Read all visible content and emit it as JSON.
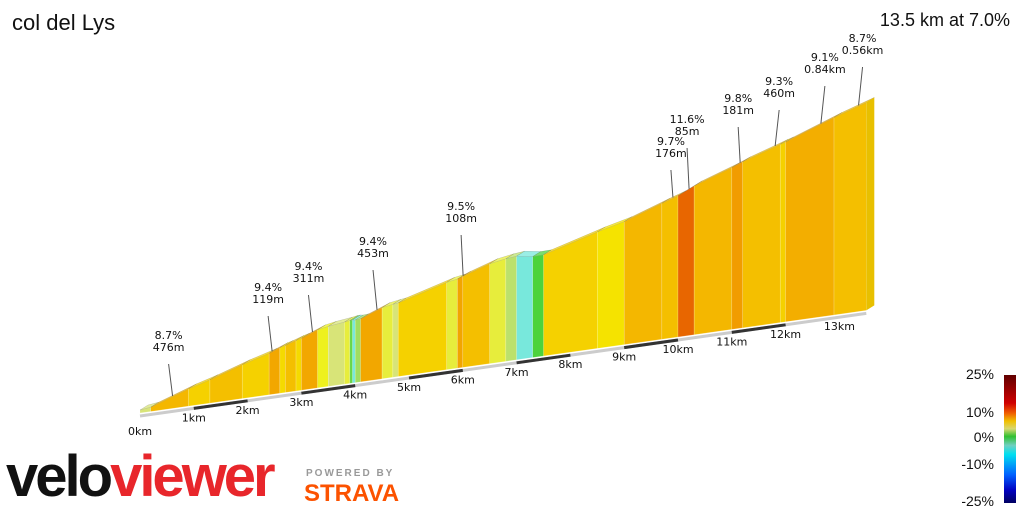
{
  "header": {
    "title": "col del Lys",
    "summary": "13.5 km at 7.0%"
  },
  "legend": {
    "labels": [
      "25%",
      "10%",
      "0%",
      "-10%",
      "-25%"
    ]
  },
  "branding": {
    "logo": "veloviewer",
    "powered_by": "POWERED BY",
    "strava": "STRAVA"
  },
  "chart_data": {
    "type": "area",
    "title": "col del Lys",
    "distance_km": 13.5,
    "avg_grade_pct": 7.0,
    "x_ticks": [
      "0km",
      "1km",
      "2km",
      "3km",
      "4km",
      "5km",
      "6km",
      "7km",
      "8km",
      "9km",
      "10km",
      "11km",
      "12km",
      "13km"
    ],
    "segments": [
      [
        0.0,
        0.2,
        3
      ],
      [
        0.2,
        0.9,
        8.5
      ],
      [
        0.9,
        1.3,
        7
      ],
      [
        1.3,
        1.9,
        8
      ],
      [
        1.9,
        2.4,
        7
      ],
      [
        2.4,
        2.6,
        9.4
      ],
      [
        2.6,
        2.7,
        6.5
      ],
      [
        2.7,
        2.9,
        8
      ],
      [
        2.9,
        3.0,
        6.5
      ],
      [
        3.0,
        3.3,
        9.4
      ],
      [
        3.3,
        3.5,
        4.5
      ],
      [
        3.5,
        3.8,
        3
      ],
      [
        3.8,
        3.9,
        4
      ],
      [
        3.9,
        3.95,
        1
      ],
      [
        3.95,
        4.0,
        -4
      ],
      [
        4.0,
        4.1,
        2
      ],
      [
        4.1,
        4.5,
        9.4
      ],
      [
        4.5,
        4.7,
        4
      ],
      [
        4.7,
        4.8,
        3
      ],
      [
        4.8,
        5.7,
        7
      ],
      [
        5.7,
        5.9,
        4
      ],
      [
        5.9,
        6.0,
        9.5
      ],
      [
        6.0,
        6.5,
        8
      ],
      [
        6.5,
        6.8,
        4
      ],
      [
        6.8,
        7.0,
        2.5
      ],
      [
        7.0,
        7.3,
        -4
      ],
      [
        7.3,
        7.5,
        0.5
      ],
      [
        7.5,
        8.5,
        7
      ],
      [
        8.5,
        9.0,
        6
      ],
      [
        9.0,
        9.7,
        8.5
      ],
      [
        9.7,
        10.0,
        8
      ],
      [
        10.0,
        10.3,
        11.6
      ],
      [
        10.3,
        11.0,
        8.5
      ],
      [
        11.0,
        11.2,
        9.8
      ],
      [
        11.2,
        11.9,
        8
      ],
      [
        11.9,
        12.0,
        7
      ],
      [
        12.0,
        12.9,
        9
      ],
      [
        12.9,
        13.5,
        8
      ]
    ],
    "annotations": [
      {
        "km": 0.55,
        "grade": "8.7%",
        "length": "476m"
      },
      {
        "km": 2.4,
        "grade": "9.4%",
        "length": "119m"
      },
      {
        "km": 3.15,
        "grade": "9.4%",
        "length": "311m"
      },
      {
        "km": 4.35,
        "grade": "9.4%",
        "length": "453m"
      },
      {
        "km": 5.95,
        "grade": "9.5%",
        "length": "108m"
      },
      {
        "km": 9.85,
        "grade": "9.7%",
        "length": "176m"
      },
      {
        "km": 10.15,
        "grade": "11.6%",
        "length": "85m"
      },
      {
        "km": 11.1,
        "grade": "9.8%",
        "length": "181m"
      },
      {
        "km": 11.75,
        "grade": "9.3%",
        "length": "460m"
      },
      {
        "km": 12.6,
        "grade": "9.1%",
        "length": "0.84km"
      },
      {
        "km": 13.3,
        "grade": "8.7%",
        "length": "0.56km"
      }
    ],
    "colorscale": {
      "min": -25,
      "max": 25
    }
  }
}
